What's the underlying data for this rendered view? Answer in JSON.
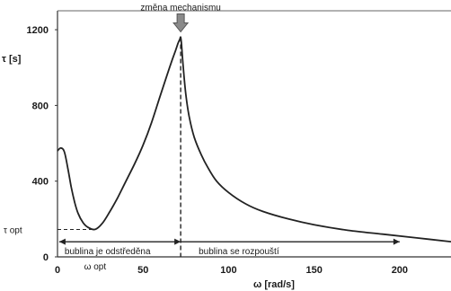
{
  "chart_data": {
    "type": "line",
    "xlabel": "ω [rad/s]",
    "ylabel": "τ [s]",
    "xlim": [
      0,
      230
    ],
    "ylim": [
      0,
      1300
    ],
    "x_ticks": [
      0,
      50,
      100,
      150,
      200
    ],
    "y_ticks": [
      0,
      400,
      800,
      1200
    ],
    "grid": false,
    "legend": "none",
    "series": [
      {
        "x": [
          0,
          2,
          4,
          6,
          8,
          10,
          12,
          15,
          18,
          22,
          26,
          30,
          35,
          40,
          45,
          50,
          55,
          60,
          64,
          67,
          69,
          70.5,
          71.5,
          72,
          72.5,
          73.5,
          75,
          77,
          80,
          84,
          88,
          93,
          100,
          110,
          120,
          135,
          150,
          170,
          190,
          210,
          230
        ],
        "y": [
          560,
          575,
          555,
          470,
          370,
          290,
          230,
          180,
          155,
          145,
          175,
          230,
          310,
          400,
          490,
          590,
          710,
          850,
          960,
          1040,
          1090,
          1130,
          1150,
          1160,
          1120,
          1000,
          860,
          740,
          630,
          540,
          470,
          400,
          340,
          280,
          240,
          200,
          170,
          140,
          120,
          100,
          80
        ],
        "color": "#222222"
      }
    ],
    "marker_label": "změna mechanismu",
    "marker_x": 72,
    "marker_y": 1160,
    "tau_opt_label": "τ opt",
    "tau_opt_y": 145,
    "omega_opt_label": "ω opt",
    "omega_opt_x": 22,
    "region_left_label": "bublina je odstředěna",
    "region_right_label": "bublina se rozpouští",
    "region_y": 80,
    "region_x_start": 1,
    "region_x_end": 200
  }
}
